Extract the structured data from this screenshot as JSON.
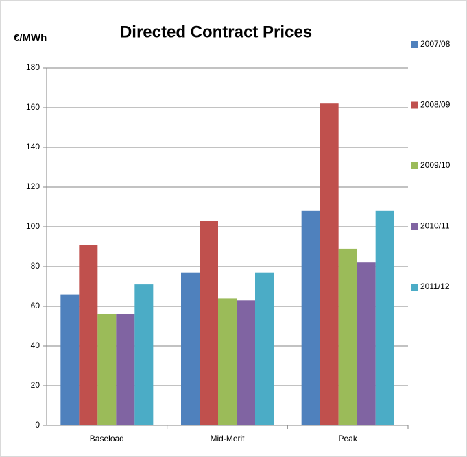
{
  "chart_data": {
    "type": "bar",
    "title": "Directed Contract Prices",
    "y_label": "€/MWh",
    "categories": [
      "Baseload",
      "Mid-Merit",
      "Peak"
    ],
    "series": [
      {
        "name": "2007/08",
        "color": "#4f81bd",
        "values": [
          66,
          77,
          108
        ]
      },
      {
        "name": "2008/09",
        "color": "#c0504d",
        "values": [
          91,
          103,
          162
        ]
      },
      {
        "name": "2009/10",
        "color": "#9bbb59",
        "values": [
          56,
          64,
          89
        ]
      },
      {
        "name": "2010/11",
        "color": "#8064a2",
        "values": [
          56,
          63,
          82
        ]
      },
      {
        "name": "2011/12",
        "color": "#4bacc6",
        "values": [
          71,
          77,
          108
        ]
      }
    ],
    "ylim": [
      0,
      180
    ],
    "yticks": [
      0,
      20,
      40,
      60,
      80,
      100,
      120,
      140,
      160,
      180
    ],
    "grid": true,
    "legend": "right"
  }
}
